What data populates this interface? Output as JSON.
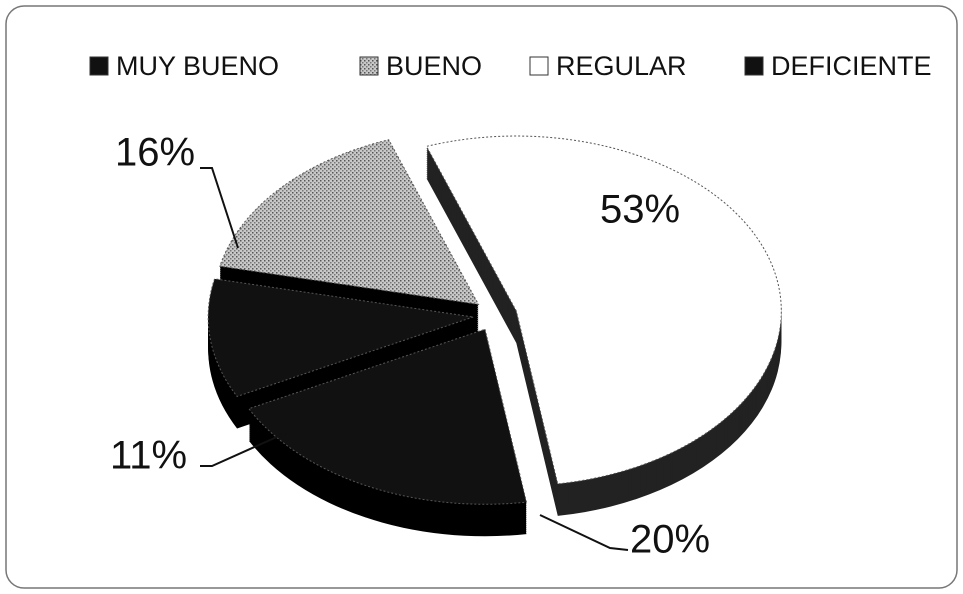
{
  "chart_data": {
    "type": "pie",
    "categories": [
      "MUY BUENO",
      "BUENO",
      "REGULAR",
      "DEFICIENTE"
    ],
    "values": [
      11,
      16,
      53,
      20
    ],
    "value_labels": [
      "11%",
      "16%",
      "53%",
      "20%"
    ],
    "colors": [
      "#111111",
      "#a8a8a8",
      "#ffffff",
      "#111111"
    ],
    "legend": "top"
  }
}
